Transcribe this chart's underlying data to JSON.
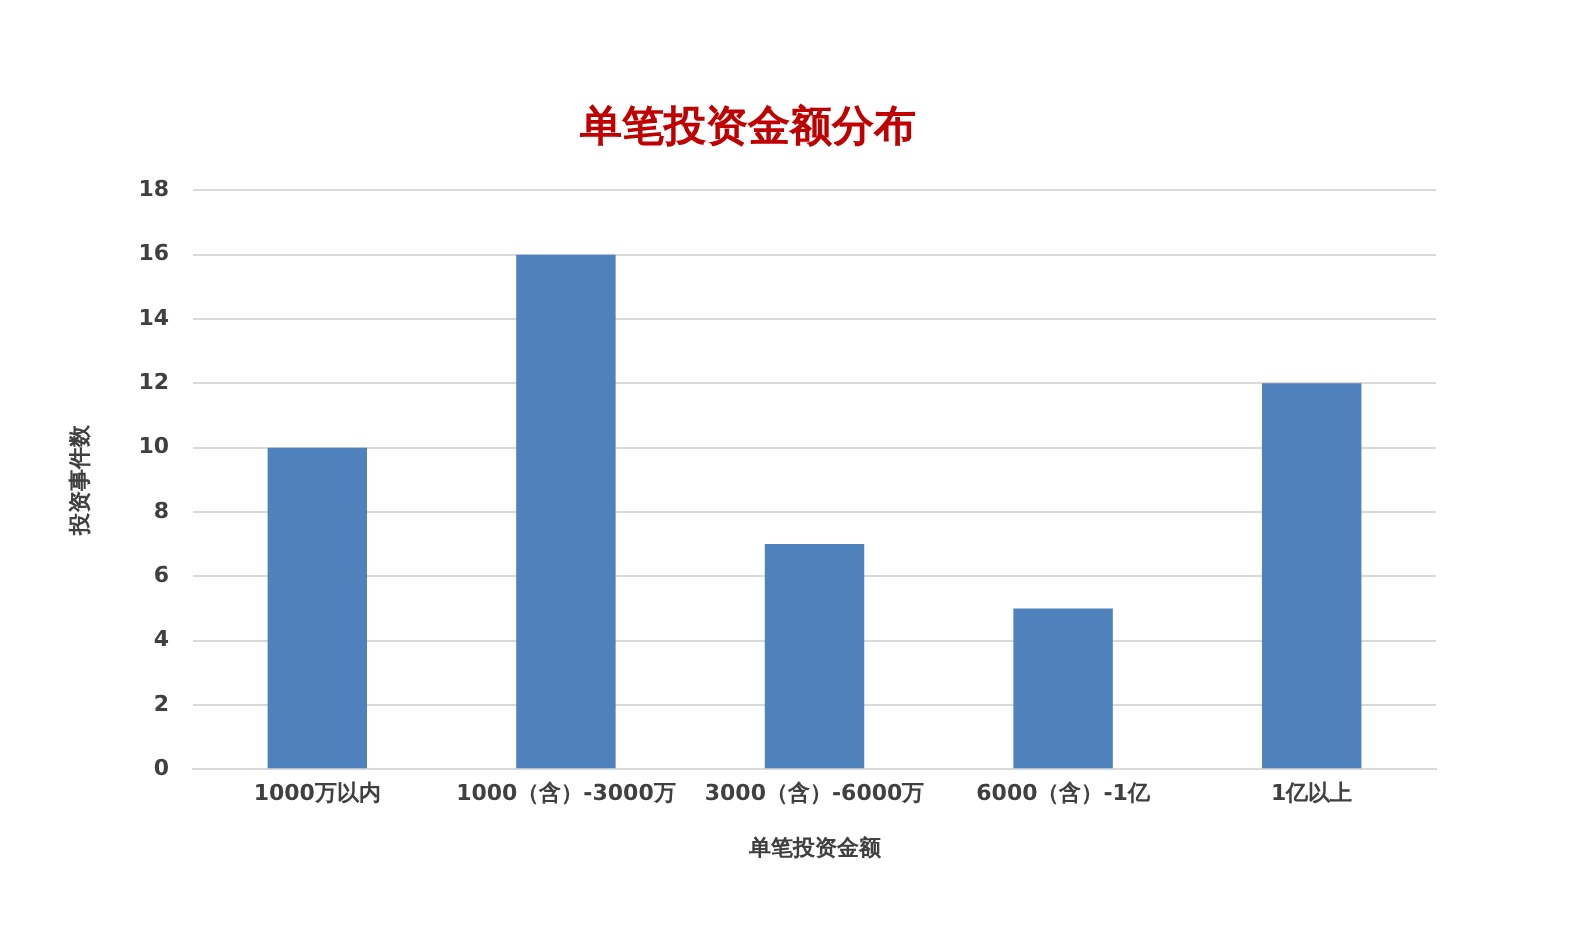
{
  "chart_data": {
    "type": "bar",
    "title": "单笔投资金额分布",
    "xlabel": "单笔投资金额",
    "ylabel": "投资事件数",
    "categories": [
      "1000万以内",
      "1000（含）-3000万",
      "3000（含）-6000万",
      "6000（含）-1亿",
      "1亿以上"
    ],
    "values": [
      10,
      16,
      7,
      5,
      12
    ],
    "color": "#4f81bd",
    "ylim": [
      0,
      18
    ],
    "yticks": [
      0,
      2,
      4,
      6,
      8,
      10,
      12,
      14,
      16,
      18
    ],
    "grid": "y",
    "legend": false
  }
}
